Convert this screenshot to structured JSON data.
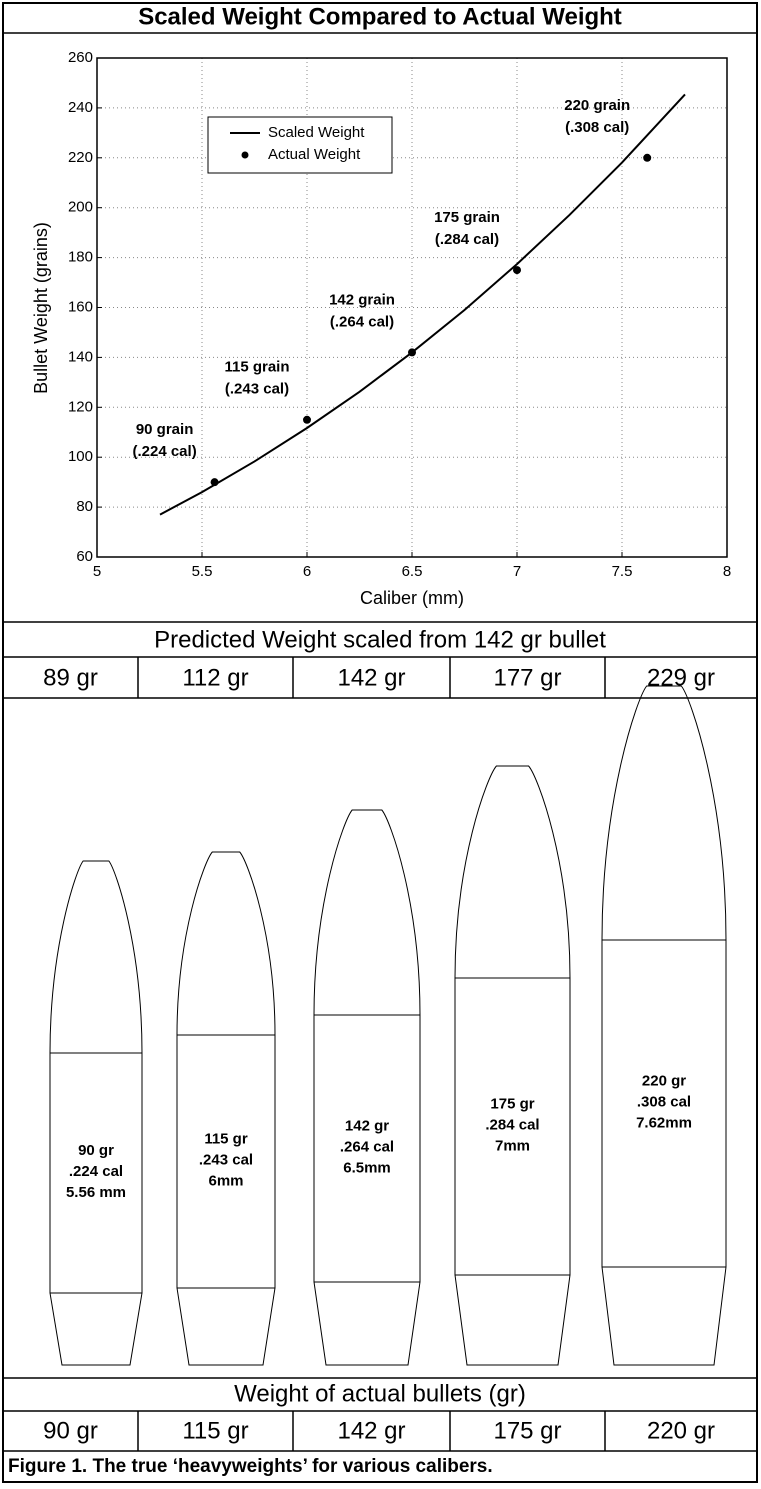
{
  "chart_data": {
    "type": "line",
    "title": "Scaled Weight Compared to Actual Weight",
    "xlabel": "Caliber (mm)",
    "ylabel": "Bullet Weight (grains)",
    "xlim": [
      5,
      8
    ],
    "ylim": [
      60,
      260
    ],
    "xticks": [
      5,
      5.5,
      6,
      6.5,
      7,
      7.5,
      8
    ],
    "yticks": [
      60,
      80,
      100,
      120,
      140,
      160,
      180,
      200,
      220,
      240,
      260
    ],
    "grid": true,
    "legend": "upper left",
    "series": [
      {
        "name": "Scaled Weight",
        "color": "#000000",
        "style": "line",
        "x": [
          5.3,
          5.5,
          5.75,
          6,
          6.25,
          6.5,
          6.75,
          7,
          7.25,
          7.5,
          7.8
        ],
        "values": [
          77.0,
          86.0,
          98.3,
          111.7,
          126.2,
          142,
          159.0,
          177.4,
          197.1,
          218.1,
          245.4
        ]
      },
      {
        "name": "Actual Weight",
        "color": "#000000",
        "style": "marker",
        "x": [
          5.56,
          6,
          6.5,
          7,
          7.62
        ],
        "values": [
          90,
          115,
          142,
          175,
          220
        ]
      }
    ],
    "annotations": [
      {
        "lines": [
          "90 grain",
          "(.224 cal)"
        ]
      },
      {
        "lines": [
          "115 grain",
          "(.243 cal)"
        ]
      },
      {
        "lines": [
          "142 grain",
          "(.264 cal)"
        ]
      },
      {
        "lines": [
          "175 grain",
          "(.284 cal)"
        ]
      },
      {
        "lines": [
          "220 grain",
          "(.308 cal)"
        ]
      }
    ]
  },
  "predicted": {
    "heading": "Predicted Weight scaled from 142 gr bullet",
    "cells": [
      "89 gr",
      "112 gr",
      "142 gr",
      "177 gr",
      "229 gr"
    ]
  },
  "bullets": [
    {
      "lines": [
        "90 gr",
        ".224 cal",
        "5.56 mm"
      ]
    },
    {
      "lines": [
        "115 gr",
        ".243 cal",
        "6mm"
      ]
    },
    {
      "lines": [
        "142 gr",
        ".264 cal",
        "6.5mm"
      ]
    },
    {
      "lines": [
        "175 gr",
        ".284 cal",
        "7mm"
      ]
    },
    {
      "lines": [
        "220 gr",
        ".308 cal",
        "7.62mm"
      ]
    }
  ],
  "actual": {
    "heading": "Weight of actual bullets (gr)",
    "cells": [
      "90 gr",
      "115 gr",
      "142 gr",
      "175 gr",
      "220 gr"
    ]
  },
  "caption": "Figure 1. The true ‘heavyweights’ for various calibers."
}
